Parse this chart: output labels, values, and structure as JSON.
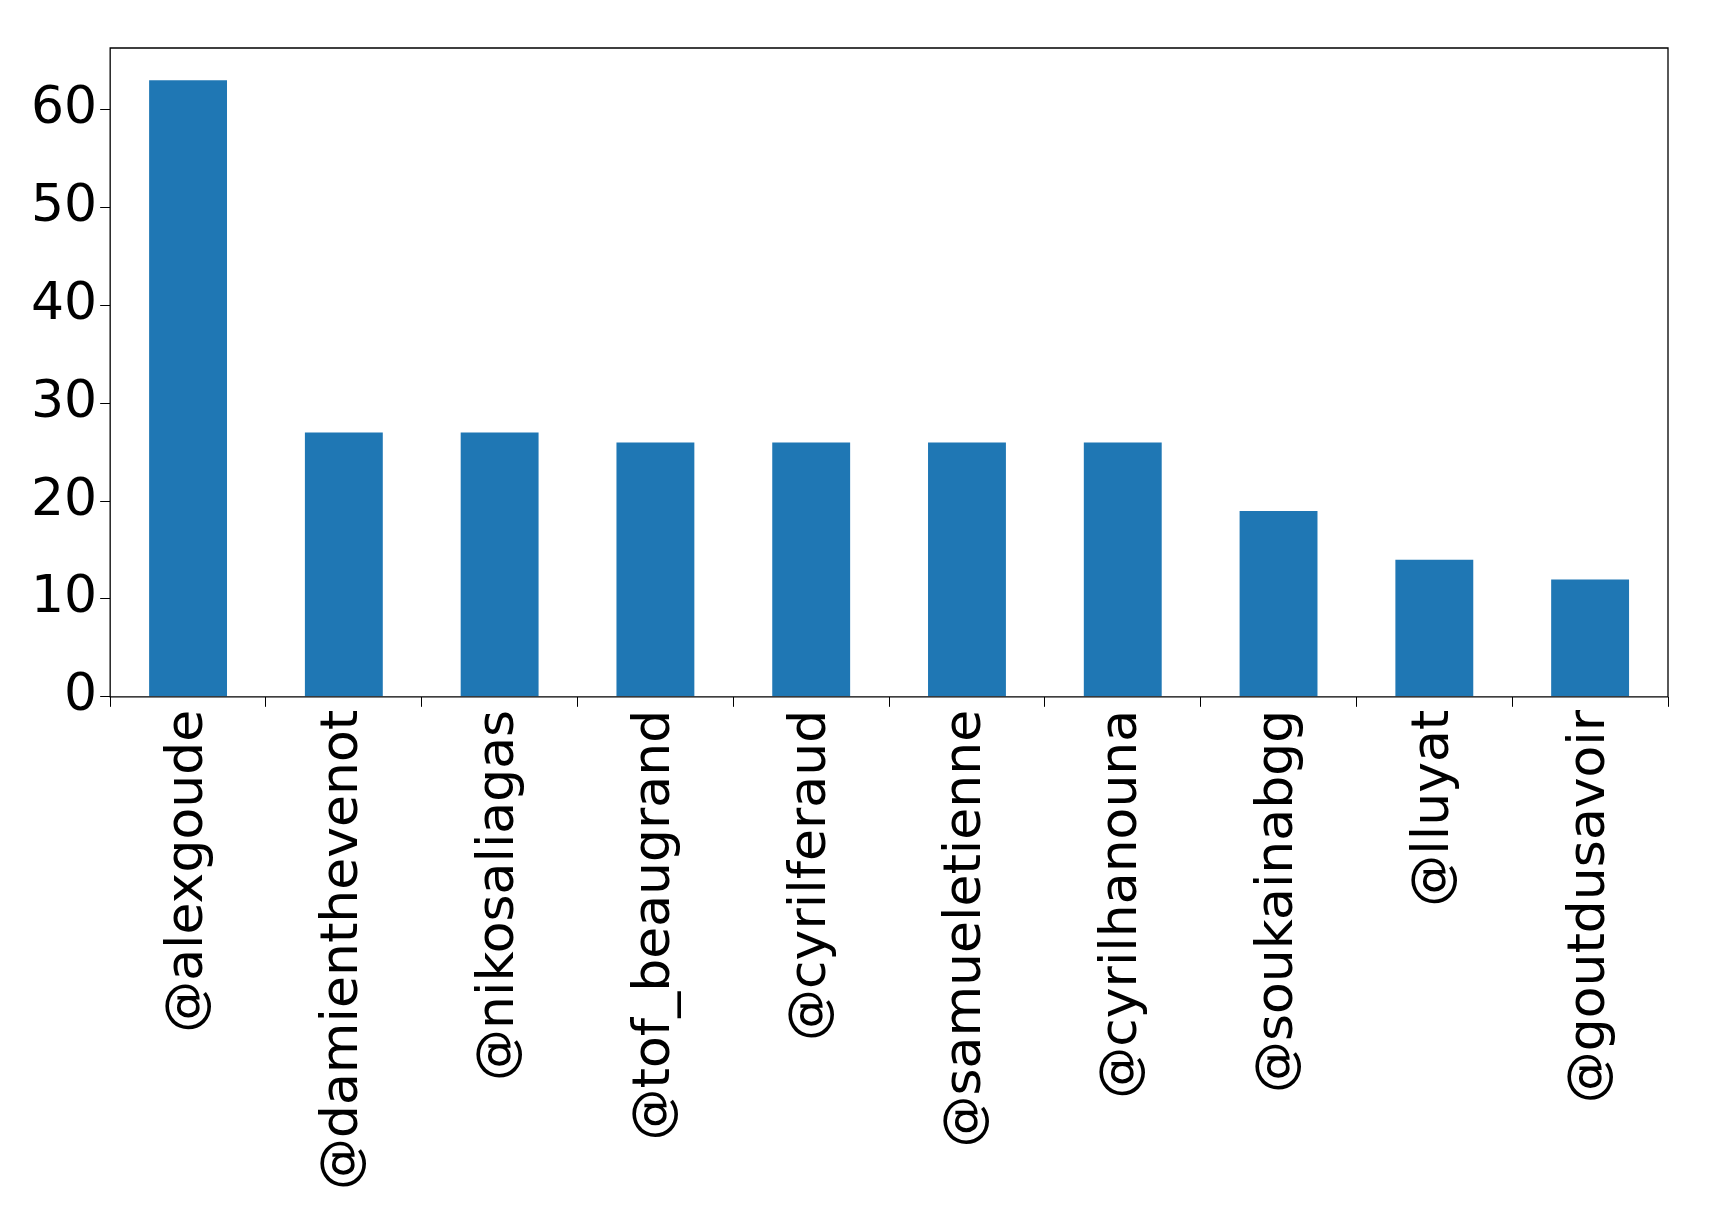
{
  "chart_data": {
    "type": "bar",
    "categories": [
      "@alexgoude",
      "@damienthevenot",
      "@nikosaliagas",
      "@tof_beaugrand",
      "@cyrilferaud",
      "@samueletienne",
      "@cyrilhanouna",
      "@soukainabgg",
      "@lluyat",
      "@goutdusavoir"
    ],
    "values": [
      63,
      27,
      27,
      26,
      26,
      26,
      26,
      19,
      14,
      12
    ],
    "color": "#1f77b4",
    "ylim": [
      0,
      66.3
    ],
    "yticks": [
      0,
      10,
      20,
      30,
      40,
      50,
      60
    ],
    "grid": false,
    "legend": false
  }
}
